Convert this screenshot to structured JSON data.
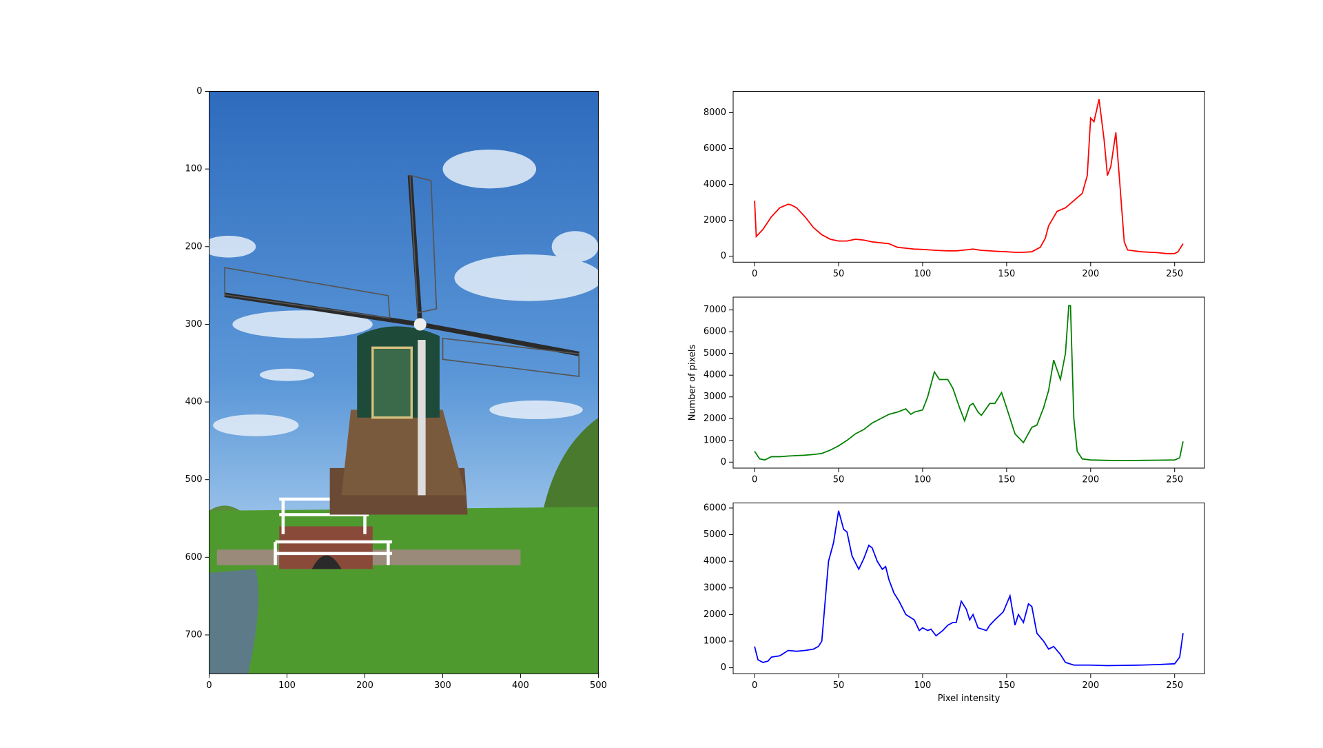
{
  "chart_data": [
    {
      "type": "image",
      "xlim": [
        0,
        500
      ],
      "ylim": [
        750,
        0
      ],
      "xticks": [
        0,
        100,
        200,
        300,
        400,
        500
      ],
      "yticks": [
        0,
        100,
        200,
        300,
        400,
        500,
        600,
        700
      ]
    },
    {
      "type": "line",
      "color": "#ff0000",
      "xlim": [
        -12.75,
        267.75
      ],
      "ylim": [
        -330,
        9190
      ],
      "xticks": [
        0,
        50,
        100,
        150,
        200,
        250
      ],
      "yticks": [
        0,
        2000,
        4000,
        6000,
        8000
      ],
      "x": [
        0,
        1,
        5,
        10,
        15,
        20,
        22,
        25,
        30,
        35,
        40,
        45,
        50,
        55,
        60,
        65,
        70,
        75,
        80,
        85,
        90,
        95,
        100,
        105,
        110,
        115,
        120,
        125,
        130,
        135,
        140,
        145,
        150,
        155,
        160,
        165,
        170,
        173,
        175,
        180,
        185,
        190,
        195,
        198,
        200,
        202,
        205,
        208,
        210,
        212,
        215,
        217,
        220,
        222,
        230,
        240,
        245,
        250,
        252,
        255
      ],
      "values": [
        3100,
        1100,
        1500,
        2200,
        2700,
        2900,
        2850,
        2700,
        2200,
        1600,
        1200,
        950,
        850,
        850,
        950,
        900,
        800,
        750,
        700,
        500,
        450,
        400,
        380,
        350,
        320,
        300,
        300,
        350,
        400,
        330,
        300,
        270,
        250,
        220,
        220,
        250,
        500,
        1000,
        1700,
        2500,
        2700,
        3100,
        3500,
        4500,
        7700,
        7500,
        8750,
        6500,
        4500,
        5000,
        6900,
        4500,
        800,
        350,
        250,
        200,
        150,
        150,
        250,
        700
      ]
    },
    {
      "type": "line",
      "color": "#008000",
      "xlim": [
        -12.75,
        267.75
      ],
      "ylim": [
        -275,
        7590
      ],
      "xticks": [
        0,
        50,
        100,
        150,
        200,
        250
      ],
      "yticks": [
        0,
        1000,
        2000,
        3000,
        4000,
        5000,
        6000,
        7000
      ],
      "ylabel": "Number of pixels",
      "x": [
        0,
        3,
        6,
        10,
        15,
        20,
        25,
        30,
        35,
        40,
        45,
        50,
        55,
        60,
        65,
        70,
        75,
        80,
        85,
        90,
        93,
        95,
        100,
        103,
        107,
        110,
        115,
        118,
        122,
        125,
        128,
        130,
        133,
        135,
        140,
        143,
        147,
        150,
        155,
        160,
        165,
        168,
        172,
        175,
        178,
        182,
        185,
        187,
        188,
        190,
        192,
        195,
        200,
        210,
        220,
        230,
        240,
        250,
        253,
        255
      ],
      "values": [
        500,
        150,
        100,
        250,
        250,
        280,
        300,
        320,
        350,
        400,
        550,
        750,
        1000,
        1300,
        1500,
        1800,
        2000,
        2200,
        2300,
        2450,
        2200,
        2300,
        2400,
        3000,
        4150,
        3800,
        3800,
        3400,
        2500,
        1900,
        2600,
        2700,
        2300,
        2150,
        2700,
        2700,
        3200,
        2500,
        1300,
        900,
        1600,
        1700,
        2500,
        3300,
        4700,
        3800,
        5000,
        7200,
        7200,
        2000,
        500,
        150,
        100,
        80,
        70,
        80,
        90,
        100,
        200,
        950
      ]
    },
    {
      "type": "line",
      "color": "#0000ff",
      "xlim": [
        -12.75,
        267.75
      ],
      "ylim": [
        -225,
        6190
      ],
      "xticks": [
        0,
        50,
        100,
        150,
        200,
        250
      ],
      "yticks": [
        0,
        1000,
        2000,
        3000,
        4000,
        5000,
        6000
      ],
      "xlabel": "Pixel intensity",
      "x": [
        0,
        2,
        5,
        8,
        10,
        15,
        20,
        25,
        30,
        35,
        38,
        40,
        42,
        44,
        47,
        50,
        53,
        55,
        58,
        62,
        65,
        68,
        70,
        73,
        76,
        78,
        80,
        83,
        86,
        90,
        95,
        98,
        100,
        103,
        105,
        108,
        112,
        115,
        118,
        120,
        123,
        126,
        128,
        130,
        133,
        138,
        140,
        143,
        148,
        150,
        152,
        155,
        157,
        160,
        163,
        165,
        168,
        172,
        175,
        178,
        182,
        185,
        190,
        200,
        210,
        220,
        230,
        240,
        250,
        253,
        255
      ],
      "values": [
        800,
        300,
        200,
        250,
        400,
        450,
        650,
        620,
        650,
        700,
        800,
        1000,
        2500,
        4000,
        4700,
        5900,
        5200,
        5100,
        4200,
        3700,
        4100,
        4600,
        4500,
        4000,
        3700,
        3800,
        3300,
        2800,
        2500,
        2000,
        1800,
        1400,
        1500,
        1400,
        1450,
        1200,
        1400,
        1600,
        1700,
        1700,
        2500,
        2200,
        1800,
        2000,
        1500,
        1400,
        1600,
        1800,
        2100,
        2400,
        2700,
        1600,
        2000,
        1700,
        2400,
        2300,
        1300,
        1000,
        700,
        800,
        500,
        200,
        100,
        100,
        80,
        90,
        100,
        120,
        150,
        400,
        1300
      ]
    }
  ]
}
